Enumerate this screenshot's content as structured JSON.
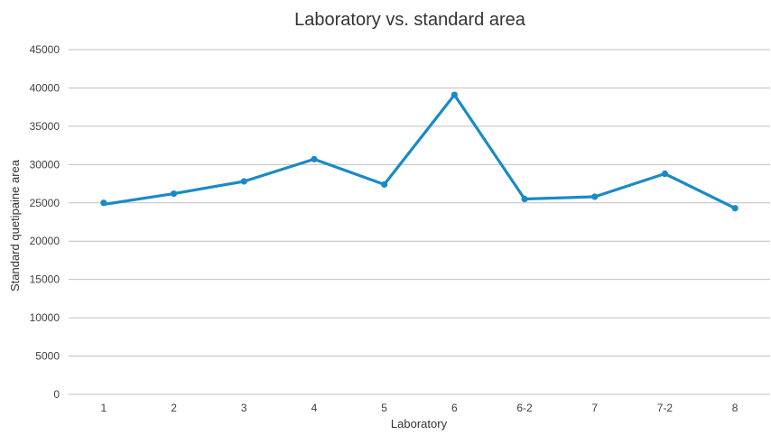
{
  "chart_data": {
    "type": "line",
    "title": "Laboratory vs. standard area",
    "xlabel": "Laboratory",
    "ylabel": "Standard quetipaine area",
    "categories": [
      "1",
      "2",
      "3",
      "4",
      "5",
      "6",
      "6-2",
      "7",
      "7-2",
      "8"
    ],
    "series": [
      {
        "values": [
          24800,
          26200,
          27800,
          30700,
          27400,
          39100,
          25500,
          25800,
          28800,
          24300
        ],
        "first_point_marker": 25000
      }
    ],
    "ylim": [
      0,
      45000
    ],
    "yticks": [
      0,
      5000,
      10000,
      15000,
      20000,
      25000,
      30000,
      35000,
      40000,
      45000
    ],
    "grid": true,
    "legend": "none",
    "colors": {
      "line": "#1a8ac6",
      "grid": "#bfbfbf",
      "text": "#404040",
      "title": "#333333"
    }
  }
}
